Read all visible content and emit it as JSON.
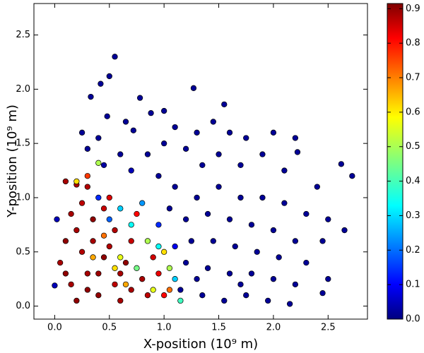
{
  "chart_data": {
    "type": "scatter",
    "x_label": "X-position (10⁹ m)",
    "y_label": "Y-position (10⁹ m)",
    "xlim": [
      -0.19,
      2.86
    ],
    "ylim": [
      -0.12,
      2.79
    ],
    "xticks": [
      {
        "value": 0,
        "label": "0.0"
      },
      {
        "value": 0.5,
        "label": "0.5"
      },
      {
        "value": 1,
        "label": "1.0"
      },
      {
        "value": 1.5,
        "label": "1.5"
      },
      {
        "value": 2,
        "label": "2.0"
      },
      {
        "value": 2.5,
        "label": "2.5"
      }
    ],
    "yticks": [
      {
        "value": 0,
        "label": "0.0"
      },
      {
        "value": 0.5,
        "label": "0.5"
      },
      {
        "value": 1,
        "label": "1.0"
      },
      {
        "value": 1.5,
        "label": "1.5"
      },
      {
        "value": 2,
        "label": "2.0"
      },
      {
        "value": 2.5,
        "label": "2.5"
      }
    ],
    "colormap": "jet",
    "clim": [
      0,
      0.915
    ],
    "cticks": [
      {
        "value": 0,
        "label": "0.0"
      },
      {
        "value": 0.1,
        "label": "0.1"
      },
      {
        "value": 0.2,
        "label": "0.2"
      },
      {
        "value": 0.3,
        "label": "0.3"
      },
      {
        "value": 0.4,
        "label": "0.4"
      },
      {
        "value": 0.5,
        "label": "0.5"
      },
      {
        "value": 0.6,
        "label": "0.6"
      },
      {
        "value": 0.7,
        "label": "0.7"
      },
      {
        "value": 0.8,
        "label": "0.8"
      },
      {
        "value": 0.9,
        "label": "0.9"
      }
    ],
    "x": [
      0.55,
      0.5,
      0.42,
      0.33,
      0.78,
      1.27,
      1.55,
      0.48,
      0.65,
      0.88,
      1.0,
      0.25,
      0.4,
      0.72,
      1.1,
      1.3,
      1.45,
      1.6,
      1.75,
      2.0,
      2.2,
      2.22,
      2.62,
      2.72,
      2.4,
      2.1,
      1.9,
      1.7,
      1.5,
      1.35,
      1.2,
      1.0,
      0.85,
      0.6,
      0.95,
      1.1,
      1.3,
      1.5,
      1.7,
      1.9,
      2.1,
      2.3,
      2.5,
      2.65,
      2.45,
      2.2,
      2.0,
      1.8,
      1.6,
      1.4,
      1.2,
      1.05,
      1.25,
      1.45,
      1.65,
      1.85,
      2.05,
      2.3,
      2.5,
      2.45,
      2.2,
      2.0,
      1.8,
      1.6,
      1.4,
      1.2,
      1.15,
      1.35,
      1.55,
      1.75,
      1.95,
      2.15,
      1.3,
      1.7,
      0.3,
      0.7,
      0.45,
      0.1,
      0.2,
      0.3,
      0.05,
      0.1,
      0.15,
      0.25,
      0.35,
      0.45,
      0.15,
      0.2,
      0.3,
      0.4,
      0.25,
      0.35,
      0.45,
      0.55,
      0.6,
      0.65,
      0.7,
      0.55,
      0.8,
      0.85,
      0.9,
      0.75,
      0.5,
      0.95,
      0.1,
      0.2,
      0.4,
      0.5,
      0.6,
      0.3,
      0.7,
      1.0,
      0.4,
      0.2,
      0.6,
      0.75,
      0.85,
      0.95,
      1.0,
      1.05,
      1.1,
      0.9,
      0.7,
      0.8,
      0.6,
      0.5,
      0.65,
      1.05,
      0.95,
      1.1,
      0.45,
      0.55,
      0.35,
      1.15,
      0.4,
      0.3,
      0.02,
      0.0
    ],
    "values": [
      2.3,
      2.12,
      2.05,
      1.93,
      1.92,
      2.01,
      1.86,
      1.75,
      1.7,
      1.78,
      1.8,
      1.6,
      1.55,
      1.62,
      1.65,
      1.6,
      1.7,
      1.6,
      1.55,
      1.6,
      1.55,
      1.42,
      1.31,
      1.2,
      1.1,
      1.25,
      1.4,
      1.3,
      1.4,
      1.3,
      1.45,
      1.5,
      1.4,
      1.4,
      1.2,
      1.1,
      1.0,
      1.1,
      1.0,
      1.0,
      0.95,
      0.85,
      0.8,
      0.7,
      0.6,
      0.6,
      0.7,
      0.75,
      0.8,
      0.85,
      0.8,
      0.9,
      0.6,
      0.6,
      0.55,
      0.5,
      0.45,
      0.4,
      0.25,
      0.12,
      0.2,
      0.25,
      0.3,
      0.3,
      0.35,
      0.4,
      0.15,
      0.1,
      0.05,
      0.1,
      0.05,
      0.02,
      0.25,
      0.2,
      1.45,
      1.25,
      1.3,
      1.15,
      1.12,
      1.1,
      0.4,
      0.6,
      0.85,
      0.95,
      0.8,
      0.9,
      0.2,
      0.05,
      0.3,
      0.1,
      0.5,
      0.6,
      0.45,
      0.2,
      0.05,
      0.4,
      0.6,
      0.7,
      0.25,
      0.1,
      0.45,
      0.85,
      1.0,
      0.3,
      0.3,
      0.7,
      0.3,
      0.55,
      0.3,
      0.15,
      0.15,
      0.1,
      1.32,
      1.15,
      0.45,
      0.35,
      0.6,
      0.55,
      0.5,
      0.35,
      0.25,
      0.15,
      0.75,
      0.95,
      0.9,
      0.8,
      0.2,
      0.15,
      0.75,
      0.55,
      0.65,
      0.35,
      0.45,
      0.05,
      1.0,
      1.2,
      0.8,
      0.19
    ],
    "color_values": [
      0.02,
      0.02,
      0.02,
      0.02,
      0.02,
      0.02,
      0.02,
      0.02,
      0.02,
      0.02,
      0.02,
      0.02,
      0.02,
      0.02,
      0.02,
      0.02,
      0.02,
      0.02,
      0.02,
      0.02,
      0.02,
      0.02,
      0.02,
      0.02,
      0.02,
      0.02,
      0.02,
      0.02,
      0.02,
      0.02,
      0.02,
      0.02,
      0.02,
      0.02,
      0.02,
      0.02,
      0.02,
      0.02,
      0.02,
      0.02,
      0.02,
      0.02,
      0.02,
      0.02,
      0.02,
      0.02,
      0.02,
      0.02,
      0.02,
      0.02,
      0.02,
      0.02,
      0.02,
      0.02,
      0.02,
      0.02,
      0.02,
      0.02,
      0.02,
      0.02,
      0.02,
      0.02,
      0.02,
      0.02,
      0.02,
      0.02,
      0.02,
      0.02,
      0.02,
      0.02,
      0.02,
      0.02,
      0.02,
      0.02,
      0.02,
      0.05,
      0.03,
      0.88,
      0.88,
      0.87,
      0.88,
      0.9,
      0.88,
      0.86,
      0.9,
      0.85,
      0.88,
      0.9,
      0.88,
      0.9,
      0.87,
      0.88,
      0.9,
      0.86,
      0.88,
      0.9,
      0.85,
      0.87,
      0.88,
      0.86,
      0.84,
      0.8,
      0.83,
      0.82,
      0.9,
      0.88,
      0.89,
      0.87,
      0.88,
      0.9,
      0.88,
      0.8,
      0.5,
      0.6,
      0.55,
      0.45,
      0.5,
      0.35,
      0.6,
      0.5,
      0.3,
      0.55,
      0.35,
      0.25,
      0.3,
      0.2,
      0.65,
      0.7,
      0.15,
      0.1,
      0.7,
      0.6,
      0.65,
      0.4,
      0.15,
      0.75,
      0.05,
      0.05
    ]
  }
}
